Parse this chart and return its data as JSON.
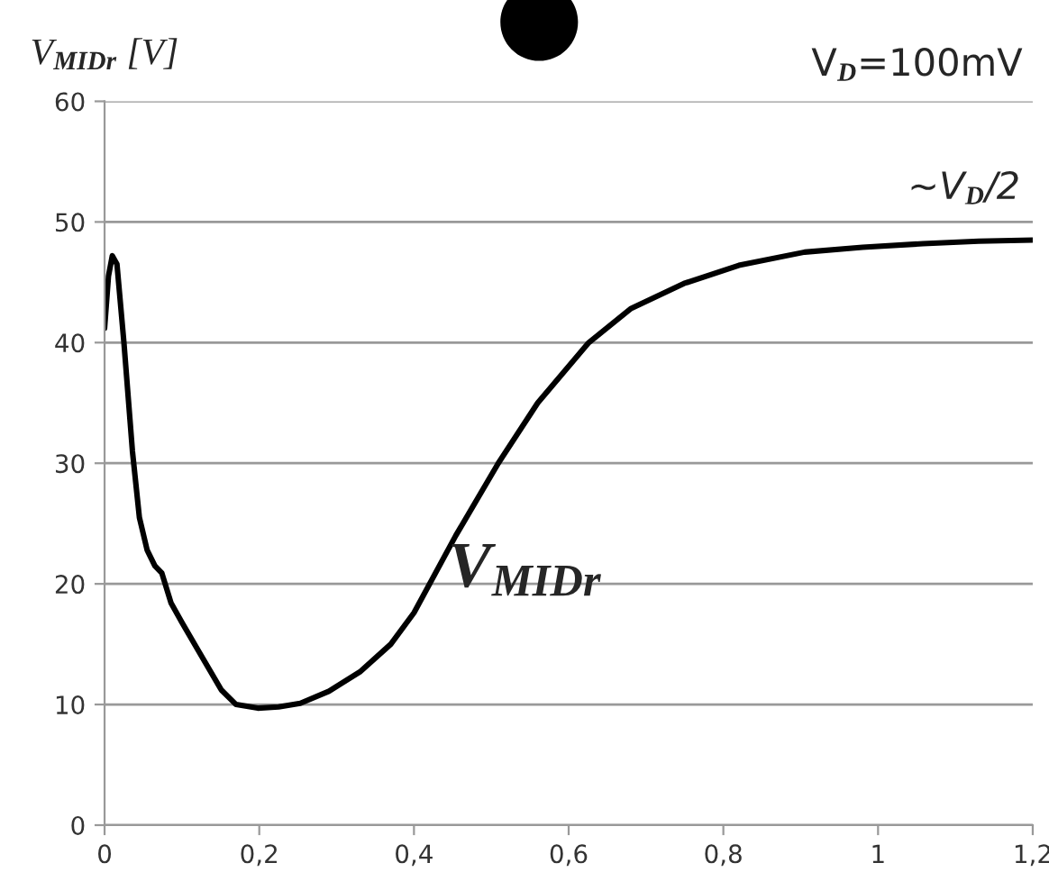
{
  "chart_data": {
    "type": "line",
    "ylabel": "V$_{MIDr}$ [V]",
    "x": [
      0,
      0.005,
      0.01,
      0.016,
      0.025,
      0.036,
      0.045,
      0.055,
      0.065,
      0.074,
      0.086,
      0.1,
      0.12,
      0.151,
      0.17,
      0.198,
      0.225,
      0.253,
      0.29,
      0.33,
      0.37,
      0.4,
      0.454,
      0.509,
      0.56,
      0.626,
      0.68,
      0.749,
      0.82,
      0.905,
      0.98,
      1.058,
      1.13,
      1.2
    ],
    "series": [
      {
        "color": "#000000",
        "values": [
          41.2,
          45.5,
          47.2,
          46.5,
          40,
          31,
          25.5,
          22.8,
          21.5,
          20.9,
          18.4,
          16.8,
          14.6,
          11.2,
          10,
          9.7,
          9.8,
          10.1,
          11.1,
          12.7,
          15,
          17.6,
          24,
          30,
          35,
          40,
          42.8,
          44.9,
          46.4,
          47.5,
          47.9,
          48.2,
          48.4,
          48.5
        ]
      }
    ],
    "xlim": [
      0,
      1.2
    ],
    "ylim": [
      0,
      60
    ],
    "xticks": [
      0,
      {
        "value": 0.2,
        "label": "0,2"
      },
      {
        "value": 0.4,
        "label": "0,4"
      },
      {
        "value": 0.6,
        "label": "0,6"
      },
      {
        "value": 0.8,
        "label": "0,8"
      },
      1,
      {
        "value": 1.2,
        "label": "1,2"
      }
    ],
    "yticks": [
      0,
      10,
      20,
      30,
      40,
      50,
      60
    ],
    "grid": "y",
    "marker": "none",
    "line_style": "solid",
    "annotations": [
      "V$_{D}$=100mV",
      "~V$_{D}$/2",
      "V$_{MIDr}$"
    ]
  }
}
